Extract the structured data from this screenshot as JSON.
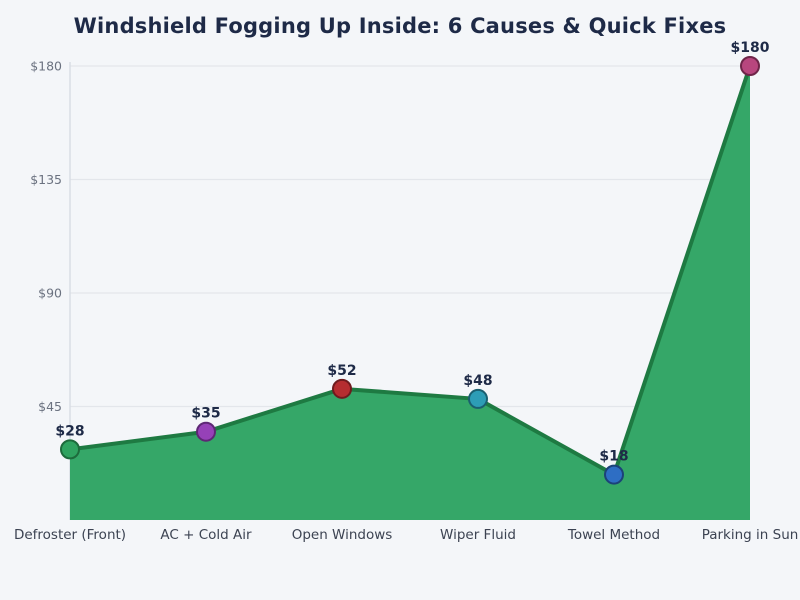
{
  "title": "Windshield Fogging Up Inside: 6 Causes & Quick Fixes",
  "colors": {
    "background": "#f4f6f9",
    "title_text": "#1e2a47",
    "area_fill": "#35a768",
    "line_stroke": "#1e7a42",
    "gridline": "#e3e6eb",
    "axis_spine": "#d8dce3",
    "y_tick_label": "#6b7280",
    "category_label": "#3c4352",
    "value_label": "#1e2a47"
  },
  "chart_data": {
    "type": "area",
    "title": "Windshield Fogging Up Inside: 6 Causes & Quick Fixes",
    "categories": [
      "Defroster (Front)",
      "AC + Cold Air",
      "Open Windows",
      "Wiper Fluid",
      "Towel Method",
      "Parking in Sun"
    ],
    "values": [
      28,
      35,
      52,
      48,
      18,
      180
    ],
    "value_labels": [
      "$28",
      "$35",
      "$52",
      "$48",
      "$18",
      "$180"
    ],
    "point_colors": [
      "#2fa360",
      "#9641b8",
      "#b52d30",
      "#2d9db6",
      "#2e6ec4",
      "#b8467e"
    ],
    "point_edge_colors": [
      "#1d6b3c",
      "#5e2775",
      "#6e1b1e",
      "#1a5f70",
      "#1c4278",
      "#6e2549"
    ],
    "xlabel": "",
    "ylabel": "",
    "ylim": [
      0,
      180
    ],
    "y_ticks": [
      45,
      90,
      135,
      180
    ],
    "y_tick_labels": [
      "$45",
      "$90",
      "$135",
      "$180"
    ],
    "grid": "horizontal-only",
    "legend": "none",
    "marker_radius": 9,
    "line_width": 4
  }
}
